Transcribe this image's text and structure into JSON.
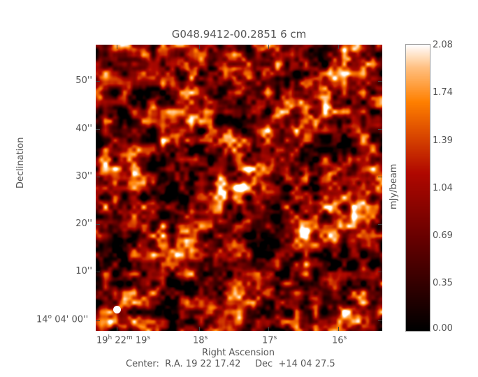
{
  "chart_data": {
    "type": "heatmap",
    "title": "G048.9412-00.2851 6 cm",
    "xlabel": "Right Ascension",
    "ylabel": "Declination",
    "x_ticks": [
      {
        "h": "19",
        "m": "22",
        "s": "19"
      },
      {
        "s": "18"
      },
      {
        "s": "17"
      },
      {
        "s": "16"
      }
    ],
    "y_ticks": [
      "50''",
      "40''",
      "30''",
      "20''",
      "10''"
    ],
    "y_origin_label": {
      "deg": "14",
      "rest": "04' 00''"
    },
    "center_label": "Center:  R.A. 19 22 17.42     Dec  +14 04 27.5",
    "colorbar": {
      "label": "mJy/beam",
      "range": [
        0.0,
        2.08
      ],
      "ticks": [
        "2.08",
        "1.74",
        "1.39",
        "1.04",
        "0.69",
        "0.35",
        "0.00"
      ],
      "colormap": [
        "#000000",
        "#600000",
        "#b00800",
        "#ff8000",
        "#ffc080",
        "#ffffff"
      ]
    },
    "features": {
      "bright_source": "compact source near map center",
      "beam": "white ellipse lower-left"
    }
  }
}
